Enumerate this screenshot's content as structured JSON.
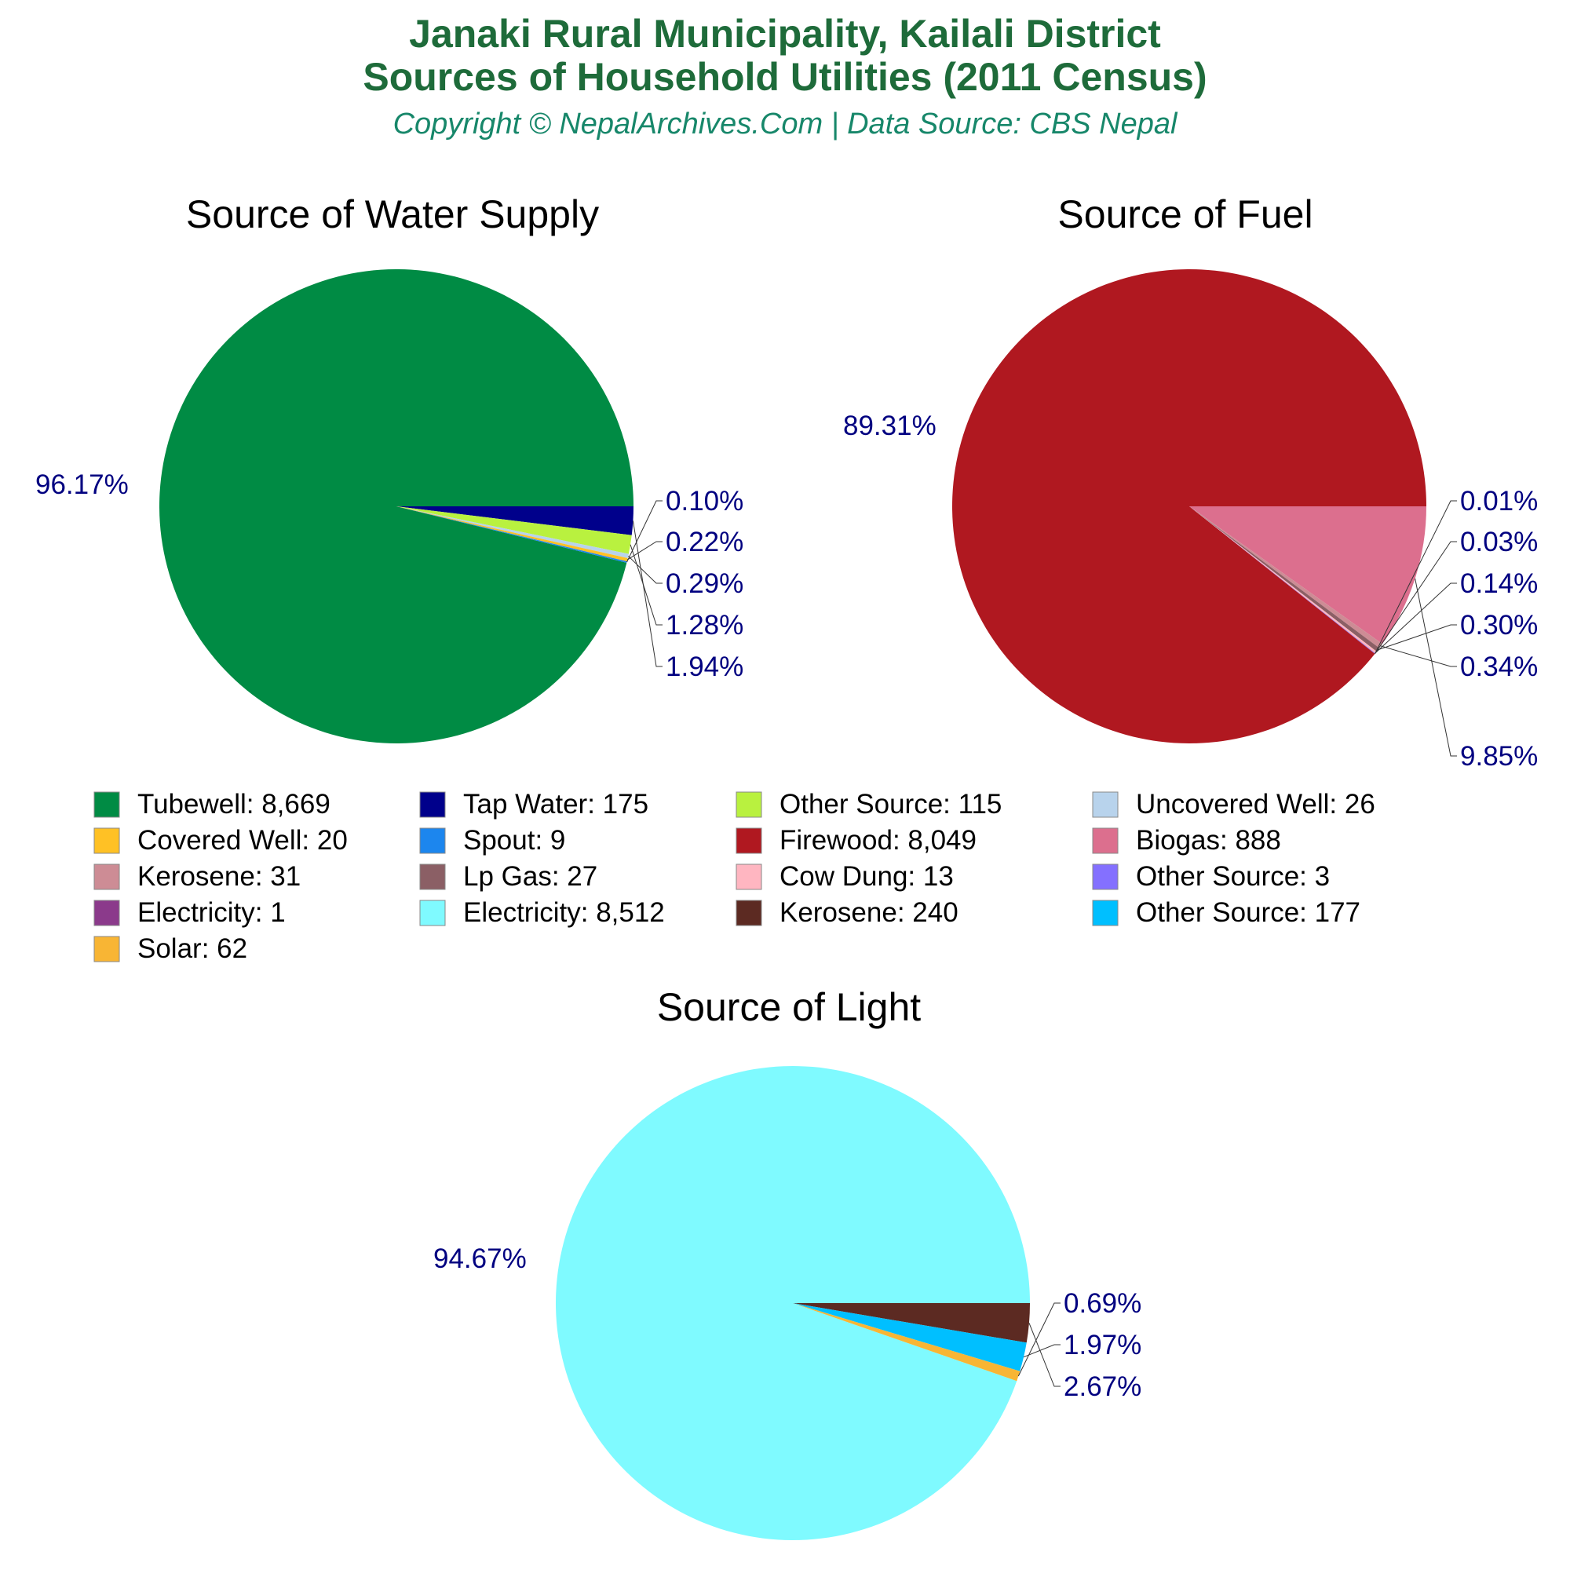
{
  "header": {
    "title_line1": "Janaki Rural Municipality, Kailali District",
    "title_line2": "Sources of Household Utilities (2011 Census)",
    "subtitle": "Copyright © NepalArchives.Com | Data Source: CBS Nepal",
    "title_color": "#1e6b3a",
    "subtitle_color": "#17876a"
  },
  "label_color": "#000080",
  "chart_data": [
    {
      "type": "pie",
      "title": "Source of Water Supply",
      "slices": [
        {
          "label": "Tubewell",
          "value": 8669,
          "display": "Tubewell: 8,669",
          "pct": "96.17%",
          "color": "#008b44"
        },
        {
          "label": "Tap Water",
          "value": 175,
          "display": "Tap Water: 175",
          "pct": "1.94%",
          "color": "#00008b"
        },
        {
          "label": "Other Source",
          "value": 115,
          "display": "Other Source: 115",
          "pct": "1.28%",
          "color": "#b9f13f"
        },
        {
          "label": "Uncovered Well",
          "value": 26,
          "display": "Uncovered Well: 26",
          "pct": "0.29%",
          "color": "#b8d3ec"
        },
        {
          "label": "Covered Well",
          "value": 20,
          "display": "Covered Well: 20",
          "pct": "0.22%",
          "color": "#ffc125"
        },
        {
          "label": "Spout",
          "value": 9,
          "display": "Spout: 9",
          "pct": "0.10%",
          "color": "#1c86ee"
        }
      ]
    },
    {
      "type": "pie",
      "title": "Source of Fuel",
      "slices": [
        {
          "label": "Firewood",
          "value": 8049,
          "display": "Firewood: 8,049",
          "pct": "89.31%",
          "color": "#b01820"
        },
        {
          "label": "Biogas",
          "value": 888,
          "display": "Biogas: 888",
          "pct": "9.85%",
          "color": "#dc6f8e"
        },
        {
          "label": "Kerosene",
          "value": 31,
          "display": "Kerosene: 31",
          "pct": "0.34%",
          "color": "#cd8c95"
        },
        {
          "label": "Lp Gas",
          "value": 27,
          "display": "Lp Gas: 27",
          "pct": "0.30%",
          "color": "#8b5f65"
        },
        {
          "label": "Cow Dung",
          "value": 13,
          "display": "Cow Dung: 13",
          "pct": "0.14%",
          "color": "#ffb6c1"
        },
        {
          "label": "Other Source",
          "value": 3,
          "display": "Other Source: 3",
          "pct": "0.03%",
          "color": "#8470ff"
        },
        {
          "label": "Electricity",
          "value": 1,
          "display": "Electricity: 1",
          "pct": "0.01%",
          "color": "#8b3a8b"
        }
      ]
    },
    {
      "type": "pie",
      "title": "Source of Light",
      "slices": [
        {
          "label": "Electricity",
          "value": 8512,
          "display": "Electricity: 8,512",
          "pct": "94.67%",
          "color": "#7ffaff"
        },
        {
          "label": "Kerosene",
          "value": 240,
          "display": "Kerosene: 240",
          "pct": "2.67%",
          "color": "#5c2a22"
        },
        {
          "label": "Other Source",
          "value": 177,
          "display": "Other Source: 177",
          "pct": "1.97%",
          "color": "#00bfff"
        },
        {
          "label": "Solar",
          "value": 62,
          "display": "Solar: 62",
          "pct": "0.69%",
          "color": "#f8b534"
        }
      ]
    }
  ],
  "legend": [
    "Tubewell: 8,669",
    "Tap Water: 175",
    "Other Source: 115",
    "Uncovered Well: 26",
    "Covered Well: 20",
    "Spout: 9",
    "Firewood: 8,049",
    "Biogas: 888",
    "Kerosene: 31",
    "Lp Gas: 27",
    "Cow Dung: 13",
    "Other Source: 3",
    "Electricity: 1",
    "Electricity: 8,512",
    "Kerosene: 240",
    "Other Source: 177",
    "Solar: 62"
  ],
  "legend_colors": [
    "#008b44",
    "#00008b",
    "#b9f13f",
    "#b8d3ec",
    "#ffc125",
    "#1c86ee",
    "#b01820",
    "#dc6f8e",
    "#cd8c95",
    "#8b5f65",
    "#ffb6c1",
    "#8470ff",
    "#8b3a8b",
    "#7ffaff",
    "#5c2a22",
    "#00bfff",
    "#f8b534"
  ]
}
